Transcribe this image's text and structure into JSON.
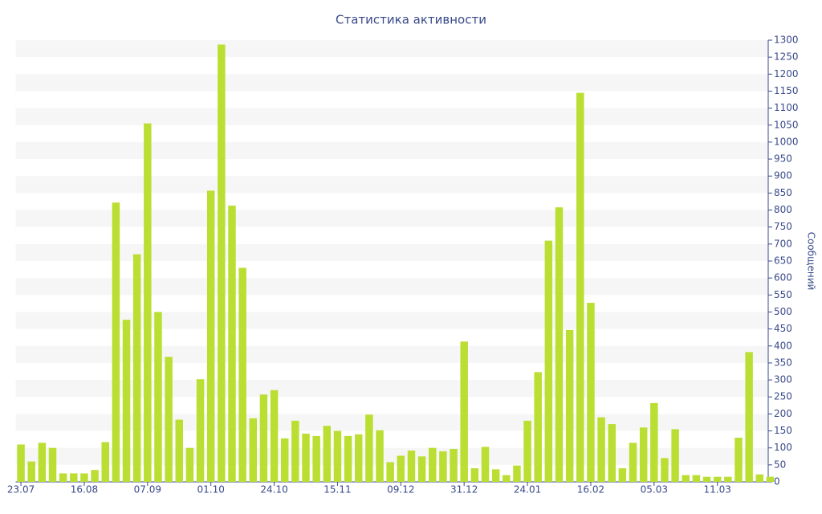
{
  "chart_data": {
    "type": "bar",
    "title": "Статистика активности",
    "y_label": "Сообщений",
    "categories": [
      "23.07",
      null,
      null,
      null,
      null,
      null,
      "16.08",
      null,
      null,
      null,
      null,
      null,
      "07.09",
      null,
      null,
      null,
      null,
      null,
      "01.10",
      null,
      null,
      null,
      null,
      null,
      "24.10",
      null,
      null,
      null,
      null,
      null,
      "15.11",
      null,
      null,
      null,
      null,
      null,
      "09.12",
      null,
      null,
      null,
      null,
      null,
      "31.12",
      null,
      null,
      null,
      null,
      null,
      "24.01",
      null,
      null,
      null,
      null,
      null,
      "16.02",
      null,
      null,
      null,
      null,
      null,
      "05.03",
      null,
      null,
      null,
      null,
      null,
      "11.03",
      null,
      null,
      null,
      null,
      null
    ],
    "values": [
      110,
      60,
      115,
      100,
      25,
      25,
      25,
      35,
      117,
      822,
      477,
      670,
      1055,
      500,
      368,
      183,
      100,
      302,
      857,
      1287,
      813,
      630,
      187,
      257,
      270,
      128,
      180,
      142,
      135,
      165,
      150,
      135,
      140,
      198,
      152,
      58,
      77,
      92,
      75,
      100,
      90,
      97,
      413,
      40,
      103,
      37,
      20,
      48,
      180,
      323,
      710,
      808,
      447,
      1145,
      527,
      190,
      170,
      40,
      115,
      160,
      232,
      70,
      155,
      20,
      20,
      15,
      15,
      15,
      130,
      382,
      22,
      15
    ],
    "color": "#bade32",
    "ylim": [
      0,
      1300
    ],
    "yticks": [
      0,
      50,
      100,
      150,
      200,
      250,
      300,
      350,
      400,
      450,
      500,
      550,
      600,
      650,
      700,
      750,
      800,
      850,
      900,
      950,
      1000,
      1050,
      1100,
      1150,
      1200,
      1250,
      1300
    ],
    "grid": true
  }
}
